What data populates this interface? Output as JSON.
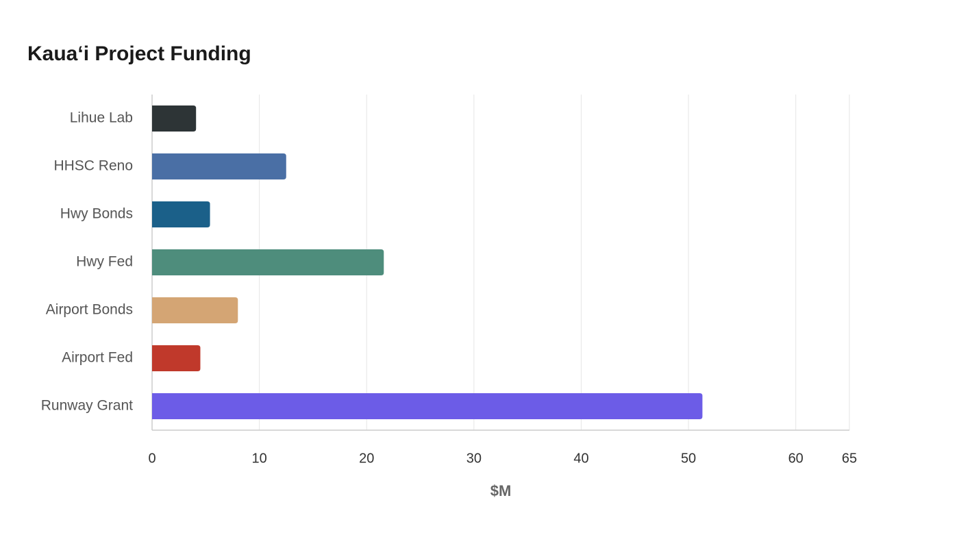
{
  "chart_data": {
    "type": "hbar",
    "title": "Kaua‘i Project Funding",
    "categories": [
      "Lihue Lab",
      "HHSC Reno",
      "Hwy Bonds",
      "Hwy Fed",
      "Airport Bonds",
      "Airport Fed",
      "Runway Grant"
    ],
    "values": [
      4.1,
      12.5,
      5.4,
      21.6,
      8.0,
      4.5,
      51.3
    ],
    "colors": [
      "#2d3436",
      "#4a6fa5",
      "#1b6089",
      "#4e8d7c",
      "#d4a574",
      "#c0392b",
      "#6c5ce7"
    ],
    "xlabel": "$M",
    "xlim": [
      0,
      65
    ],
    "xticks": [
      0,
      10,
      20,
      30,
      40,
      50,
      60,
      65
    ],
    "grid": true
  }
}
